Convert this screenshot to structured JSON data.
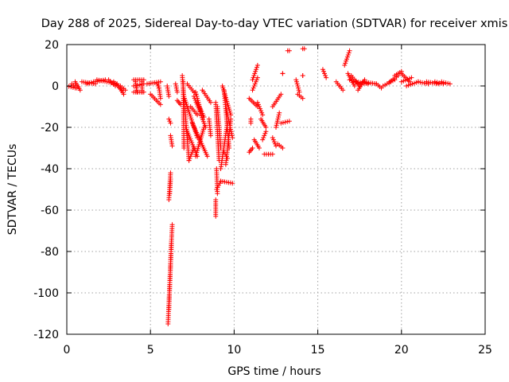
{
  "chart_data": {
    "type": "scatter",
    "title": "Day 288 of 2025, Sidereal Day-to-day VTEC variation (SDTVAR) for receiver xmis",
    "xlabel": "GPS time / hours",
    "ylabel": "SDTVAR / TECUs",
    "xlim": [
      0,
      25
    ],
    "ylim": [
      -120,
      20
    ],
    "xticks": [
      0,
      5,
      10,
      15,
      20,
      25
    ],
    "yticks": [
      20,
      0,
      -20,
      -40,
      -60,
      -80,
      -100,
      -120
    ],
    "grid": true,
    "marker": "+",
    "color": "#ff0000",
    "series": [
      {
        "name": "SDTVAR",
        "tracks": [
          {
            "x0": 0.0,
            "y0": 0,
            "x1": 0.5,
            "y1": -1
          },
          {
            "x0": 0.3,
            "y0": 1,
            "x1": 0.6,
            "y1": -1
          },
          {
            "x0": 0.5,
            "y0": 2,
            "x1": 0.8,
            "y1": -2
          },
          {
            "x0": 0.9,
            "y0": 2,
            "x1": 1.7,
            "y1": 1
          },
          {
            "x0": 1.2,
            "y0": 1,
            "x1": 1.6,
            "y1": 2
          },
          {
            "x0": 1.7,
            "y0": 2,
            "x1": 2.3,
            "y1": 3
          },
          {
            "x0": 1.8,
            "y0": 3,
            "x1": 2.4,
            "y1": 2
          },
          {
            "x0": 2.4,
            "y0": 2,
            "x1": 3.0,
            "y1": 1
          },
          {
            "x0": 2.5,
            "y0": 3,
            "x1": 2.9,
            "y1": 0
          },
          {
            "x0": 2.8,
            "y0": 2,
            "x1": 3.3,
            "y1": -2
          },
          {
            "x0": 3.0,
            "y0": 1,
            "x1": 3.4,
            "y1": -4
          },
          {
            "x0": 3.2,
            "y0": 0,
            "x1": 3.5,
            "y1": -2
          },
          {
            "x0": 4.0,
            "y0": 3,
            "x1": 4.6,
            "y1": 3
          },
          {
            "x0": 4.0,
            "y0": -3,
            "x1": 4.6,
            "y1": -3
          },
          {
            "x0": 4.0,
            "y0": 0,
            "x1": 4.6,
            "y1": 1
          },
          {
            "x0": 4.1,
            "y0": 2,
            "x1": 4.2,
            "y1": -3
          },
          {
            "x0": 4.5,
            "y0": 2,
            "x1": 4.5,
            "y1": -3
          },
          {
            "x0": 4.8,
            "y0": 1,
            "x1": 5.6,
            "y1": 2
          },
          {
            "x0": 5.0,
            "y0": -4,
            "x1": 5.6,
            "y1": -9
          },
          {
            "x0": 5.5,
            "y0": 0,
            "x1": 5.6,
            "y1": -6
          },
          {
            "x0": 5.4,
            "y0": 1,
            "x1": 5.5,
            "y1": -1
          },
          {
            "x0": 6.0,
            "y0": 0,
            "x1": 6.1,
            "y1": -5
          },
          {
            "x0": 6.1,
            "y0": -16,
            "x1": 6.2,
            "y1": -18
          },
          {
            "x0": 6.2,
            "y0": -24,
            "x1": 6.3,
            "y1": -29
          },
          {
            "x0": 6.2,
            "y0": -42,
            "x1": 6.1,
            "y1": -55
          },
          {
            "x0": 6.2,
            "y0": -45,
            "x1": 6.15,
            "y1": -52
          },
          {
            "x0": 6.3,
            "y0": -67,
            "x1": 6.05,
            "y1": -115
          },
          {
            "x0": 6.25,
            "y0": -75,
            "x1": 6.1,
            "y1": -108
          },
          {
            "x0": 6.5,
            "y0": 1,
            "x1": 6.6,
            "y1": -3
          },
          {
            "x0": 6.6,
            "y0": -7,
            "x1": 6.8,
            "y1": -9
          },
          {
            "x0": 6.9,
            "y0": 5,
            "x1": 7.3,
            "y1": -36
          },
          {
            "x0": 6.95,
            "y0": 2,
            "x1": 7.0,
            "y1": -30
          },
          {
            "x0": 7.0,
            "y0": -5,
            "x1": 7.8,
            "y1": -25
          },
          {
            "x0": 7.1,
            "y0": -20,
            "x1": 7.8,
            "y1": -34
          },
          {
            "x0": 7.3,
            "y0": -36,
            "x1": 7.6,
            "y1": -30
          },
          {
            "x0": 7.2,
            "y0": 1,
            "x1": 7.7,
            "y1": -4
          },
          {
            "x0": 7.4,
            "y0": -10,
            "x1": 7.8,
            "y1": -14
          },
          {
            "x0": 7.5,
            "y0": -18,
            "x1": 8.4,
            "y1": -34
          },
          {
            "x0": 7.7,
            "y0": -34,
            "x1": 8.2,
            "y1": -20
          },
          {
            "x0": 7.6,
            "y0": -5,
            "x1": 8.3,
            "y1": -20
          },
          {
            "x0": 7.7,
            "y0": -3,
            "x1": 8.0,
            "y1": -12
          },
          {
            "x0": 7.8,
            "y0": -8,
            "x1": 8.2,
            "y1": -15
          },
          {
            "x0": 8.1,
            "y0": -2,
            "x1": 8.6,
            "y1": -8
          },
          {
            "x0": 8.5,
            "y0": -16,
            "x1": 8.6,
            "y1": -24
          },
          {
            "x0": 8.9,
            "y0": -8,
            "x1": 9.1,
            "y1": -36
          },
          {
            "x0": 9.0,
            "y0": -10,
            "x1": 9.2,
            "y1": -30
          },
          {
            "x0": 9.3,
            "y0": 0,
            "x1": 9.8,
            "y1": -14
          },
          {
            "x0": 9.4,
            "y0": -2,
            "x1": 9.7,
            "y1": -30
          },
          {
            "x0": 9.5,
            "y0": -10,
            "x1": 9.9,
            "y1": -25
          },
          {
            "x0": 9.6,
            "y0": -18,
            "x1": 9.2,
            "y1": -40
          },
          {
            "x0": 9.8,
            "y0": -16,
            "x1": 9.5,
            "y1": -38
          },
          {
            "x0": 9.4,
            "y0": -32,
            "x1": 9.6,
            "y1": -35
          },
          {
            "x0": 8.9,
            "y0": -55,
            "x1": 8.9,
            "y1": -63
          },
          {
            "x0": 8.95,
            "y0": -50,
            "x1": 9.2,
            "y1": -46
          },
          {
            "x0": 9.2,
            "y0": -46,
            "x1": 9.9,
            "y1": -47
          },
          {
            "x0": 8.95,
            "y0": -40,
            "x1": 9.0,
            "y1": -52
          },
          {
            "x0": 10.9,
            "y0": -6,
            "x1": 11.4,
            "y1": -10
          },
          {
            "x0": 11.0,
            "y0": -16,
            "x1": 11.0,
            "y1": -18
          },
          {
            "x0": 10.9,
            "y0": -32,
            "x1": 11.1,
            "y1": -30
          },
          {
            "x0": 11.1,
            "y0": 3,
            "x1": 11.4,
            "y1": 10
          },
          {
            "x0": 11.1,
            "y0": -2,
            "x1": 11.4,
            "y1": 4
          },
          {
            "x0": 11.2,
            "y0": -26,
            "x1": 11.5,
            "y1": -30
          },
          {
            "x0": 11.4,
            "y0": -8,
            "x1": 11.7,
            "y1": -14
          },
          {
            "x0": 11.6,
            "y0": -16,
            "x1": 11.9,
            "y1": -20
          },
          {
            "x0": 11.7,
            "y0": -26,
            "x1": 11.9,
            "y1": -22
          },
          {
            "x0": 11.8,
            "y0": -33,
            "x1": 12.3,
            "y1": -33
          },
          {
            "x0": 12.3,
            "y0": -25,
            "x1": 12.5,
            "y1": -29
          },
          {
            "x0": 12.3,
            "y0": -10,
            "x1": 12.8,
            "y1": -4
          },
          {
            "x0": 12.5,
            "y0": -20,
            "x1": 12.7,
            "y1": -13
          },
          {
            "x0": 12.6,
            "y0": -28,
            "x1": 12.9,
            "y1": -30
          },
          {
            "x0": 12.8,
            "y0": -18,
            "x1": 13.3,
            "y1": -17
          },
          {
            "x0": 12.9,
            "y0": 6,
            "x1": 12.9,
            "y1": 6
          },
          {
            "x0": 13.2,
            "y0": 17,
            "x1": 13.3,
            "y1": 17
          },
          {
            "x0": 13.7,
            "y0": 3,
            "x1": 13.9,
            "y1": -3
          },
          {
            "x0": 13.8,
            "y0": -4,
            "x1": 14.1,
            "y1": -6
          },
          {
            "x0": 14.1,
            "y0": 18,
            "x1": 14.2,
            "y1": 18
          },
          {
            "x0": 14.1,
            "y0": 5,
            "x1": 14.1,
            "y1": 5
          },
          {
            "x0": 15.3,
            "y0": 8,
            "x1": 15.5,
            "y1": 4
          },
          {
            "x0": 16.1,
            "y0": 2,
            "x1": 16.5,
            "y1": -2
          },
          {
            "x0": 16.6,
            "y0": 10,
            "x1": 16.9,
            "y1": 17
          },
          {
            "x0": 16.8,
            "y0": 6,
            "x1": 17.2,
            "y1": 0
          },
          {
            "x0": 16.9,
            "y0": 3,
            "x1": 17.5,
            "y1": 1
          },
          {
            "x0": 17.0,
            "y0": 5,
            "x1": 17.5,
            "y1": 0
          },
          {
            "x0": 17.3,
            "y0": 2,
            "x1": 18.0,
            "y1": 1
          },
          {
            "x0": 17.4,
            "y0": -2,
            "x1": 17.8,
            "y1": 3
          },
          {
            "x0": 17.7,
            "y0": 2,
            "x1": 18.5,
            "y1": 1
          },
          {
            "x0": 18.5,
            "y0": 1,
            "x1": 18.8,
            "y1": -1
          },
          {
            "x0": 18.9,
            "y0": 0,
            "x1": 19.6,
            "y1": 3
          },
          {
            "x0": 19.3,
            "y0": 2,
            "x1": 19.8,
            "y1": 5
          },
          {
            "x0": 19.6,
            "y0": 5,
            "x1": 20.0,
            "y1": 7
          },
          {
            "x0": 20.0,
            "y0": 2,
            "x1": 20.6,
            "y1": 4
          },
          {
            "x0": 20.0,
            "y0": 6,
            "x1": 20.5,
            "y1": 2
          },
          {
            "x0": 20.3,
            "y0": 0,
            "x1": 21.0,
            "y1": 2
          },
          {
            "x0": 21.0,
            "y0": 2,
            "x1": 21.6,
            "y1": 1
          },
          {
            "x0": 21.5,
            "y0": 2,
            "x1": 22.2,
            "y1": 1
          },
          {
            "x0": 22.0,
            "y0": 2,
            "x1": 22.5,
            "y1": 1
          },
          {
            "x0": 22.4,
            "y0": 2,
            "x1": 22.9,
            "y1": 1
          }
        ]
      }
    ]
  }
}
